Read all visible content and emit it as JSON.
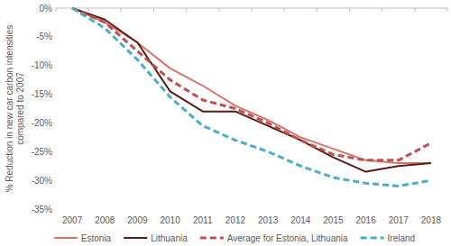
{
  "chart_data": {
    "type": "line",
    "y_label": "% Reduction in new car carbon intensities compared to 2007",
    "categories": [
      "2007",
      "2008",
      "2009",
      "2010",
      "2011",
      "2012",
      "2013",
      "2014",
      "2015",
      "2016",
      "2017",
      "2018"
    ],
    "series": [
      {
        "name": "Estonia",
        "color": "#d9736a",
        "line_style": "solid",
        "values": [
          0,
          -2.5,
          -6,
          -10.5,
          -13.5,
          -17,
          -19.5,
          -22.5,
          -24.5,
          -26.5,
          -27,
          -27
        ]
      },
      {
        "name": "Lithuania",
        "color": "#5a1a14",
        "line_style": "solid",
        "values": [
          0,
          -2,
          -6,
          -14.5,
          -18,
          -18,
          -20.5,
          -23,
          -26,
          -28.5,
          -27.5,
          -27
        ]
      },
      {
        "name": "Average for Estonia, Lithuania",
        "color": "#c0504d",
        "line_style": "dashed",
        "values": [
          0,
          -2.5,
          -7.5,
          -12.5,
          -16,
          -17.5,
          -20,
          -23,
          -25.5,
          -26.5,
          -26.5,
          -23.5
        ]
      },
      {
        "name": "Ireland",
        "color": "#4bacc6",
        "line_style": "dashed",
        "values": [
          0,
          -3.5,
          -9,
          -15.5,
          -20.5,
          -23,
          -25,
          -27.5,
          -29.5,
          -30.5,
          -31,
          -30
        ]
      }
    ],
    "ylim": [
      -35,
      0
    ],
    "yticks": [
      {
        "value": 0,
        "label": "0%"
      },
      {
        "value": -5,
        "label": "-5%"
      },
      {
        "value": -10,
        "label": "-10%"
      },
      {
        "value": -15,
        "label": "-15%"
      },
      {
        "value": -20,
        "label": "-20%"
      },
      {
        "value": -25,
        "label": "-25%"
      },
      {
        "value": -30,
        "label": "-30%"
      },
      {
        "value": -35,
        "label": "-35%"
      }
    ],
    "grid": false,
    "legend": "bottom"
  }
}
